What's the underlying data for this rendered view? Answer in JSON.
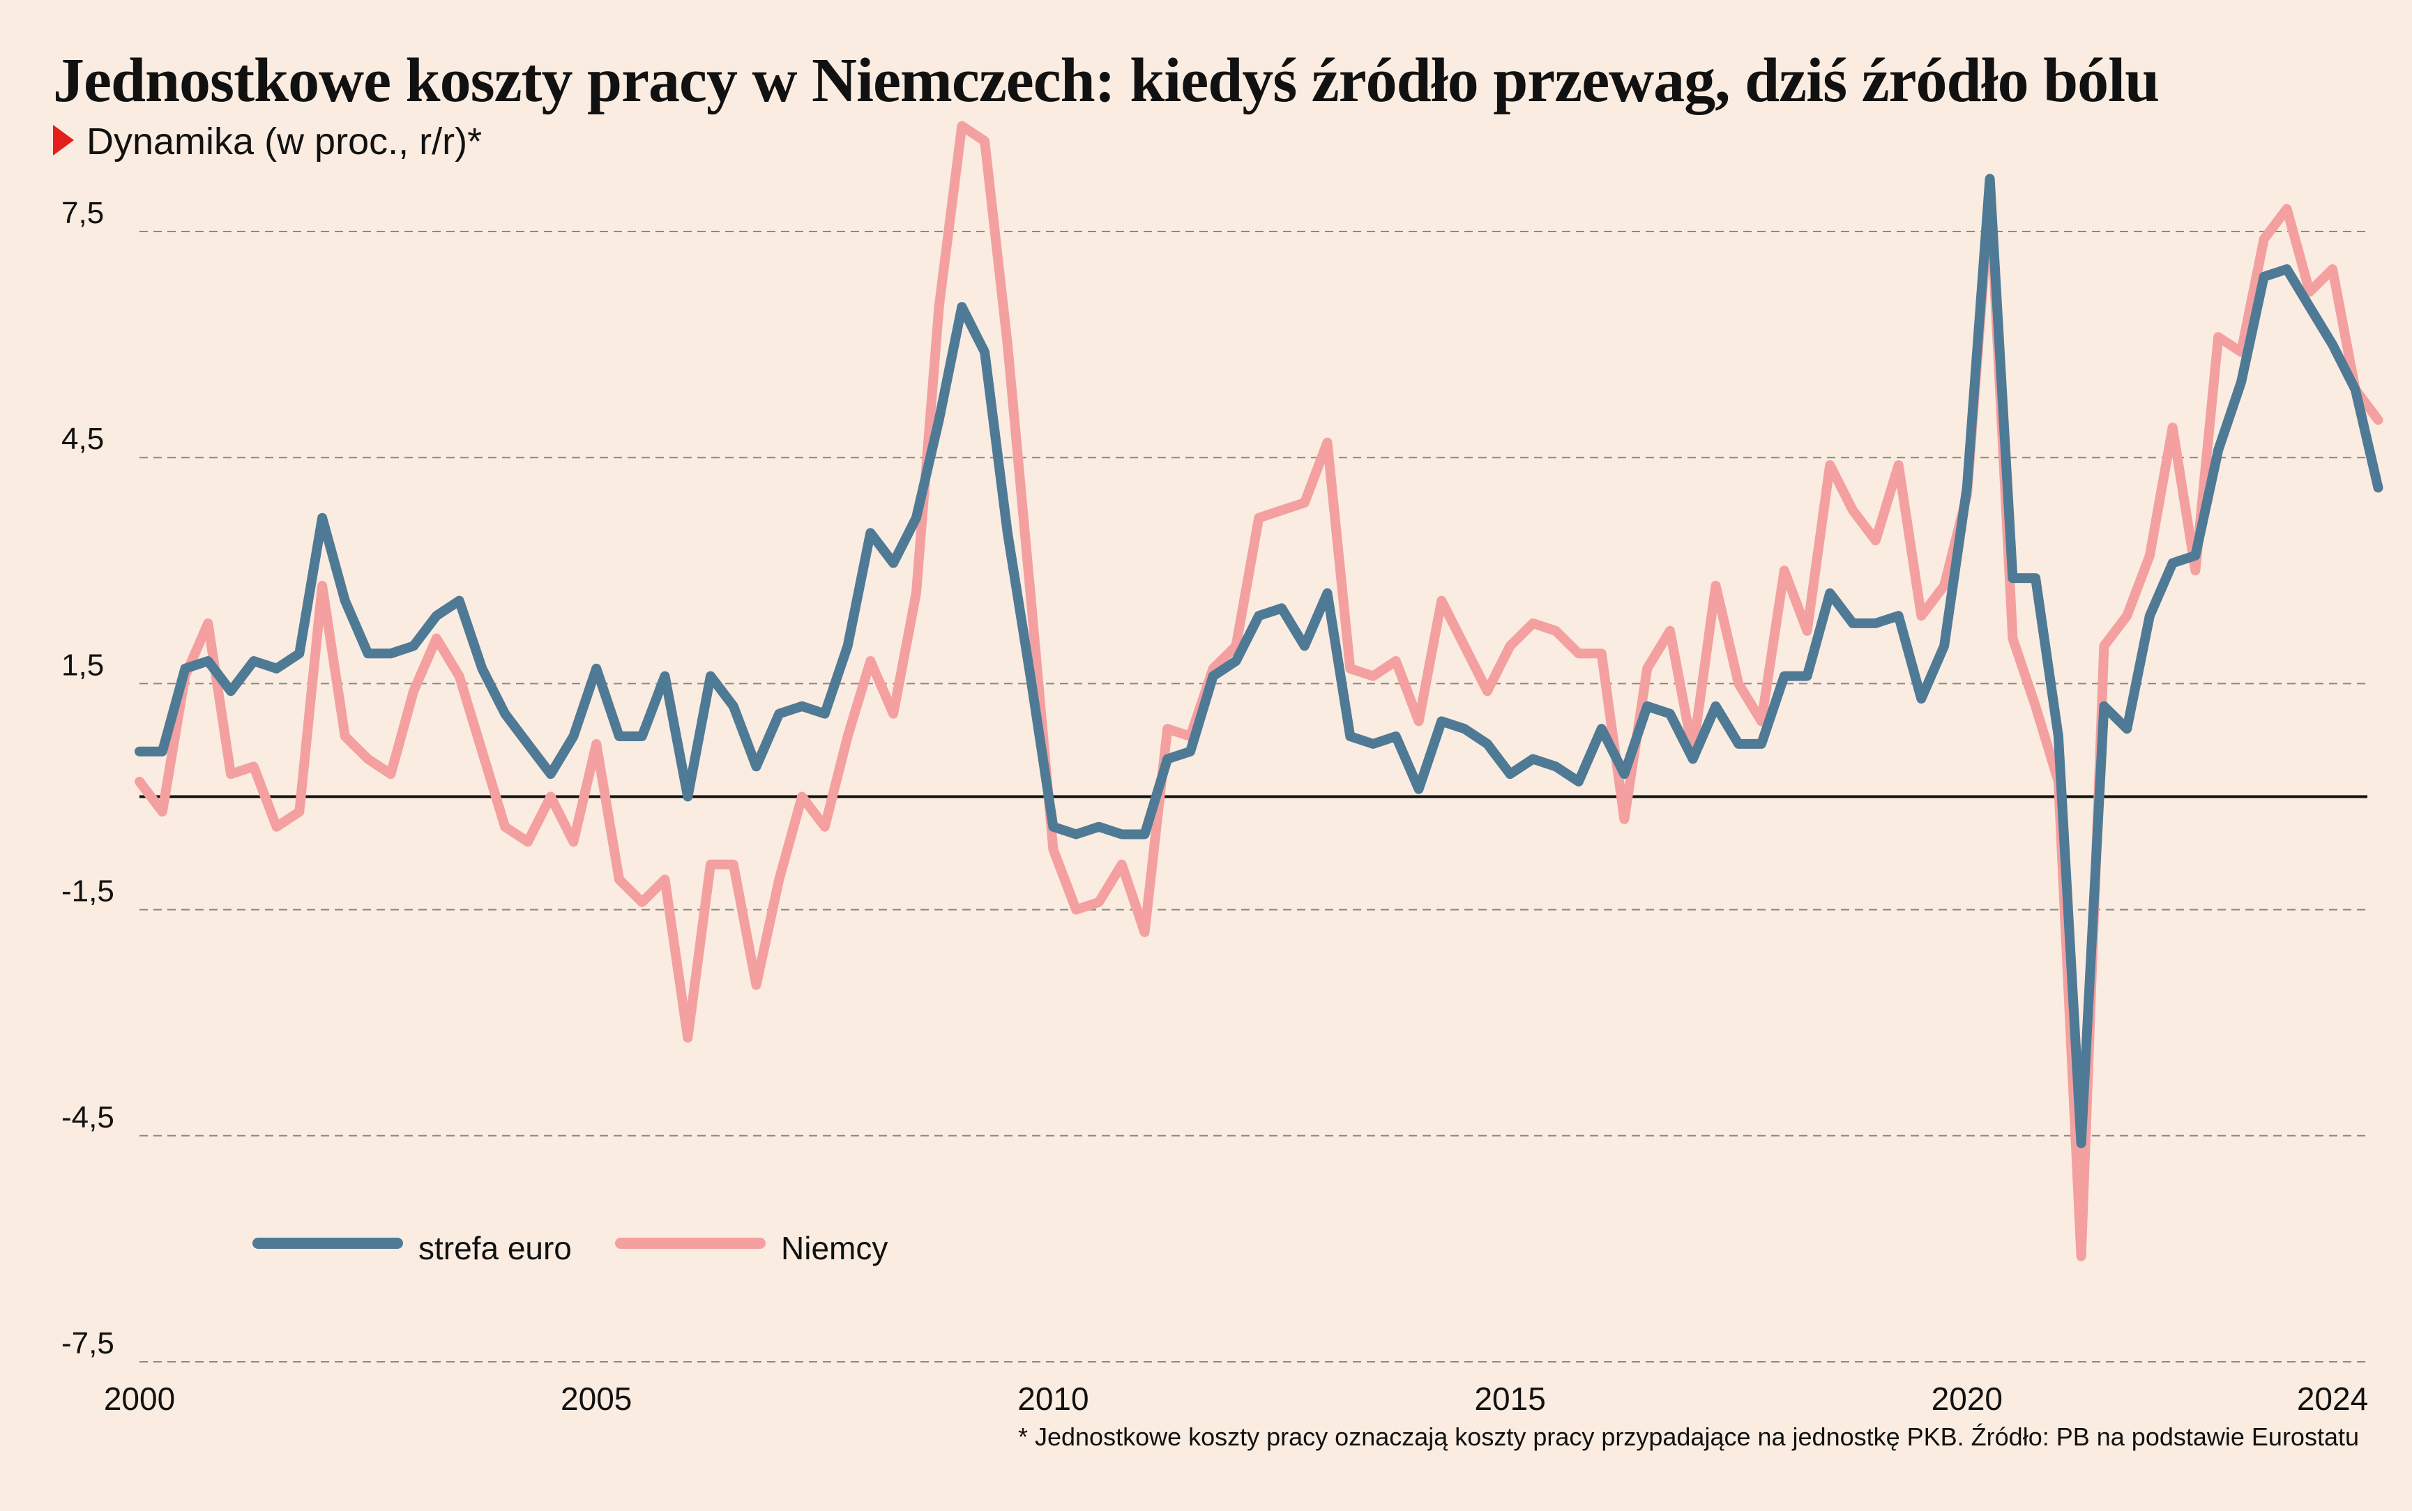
{
  "title": "Jednostkowe koszty pracy w Niemczech: kiedyś źródło przewag, dziś źródło bólu",
  "subtitle": "Dynamika (w proc., r/r)*",
  "footnote": "* Jednostkowe koszty pracy oznaczają koszty pracy przypadające na jednostkę PKB. Źródło: PB na podstawie Eurostatu",
  "colors": {
    "background": "#faece0",
    "euro_area": "#4f7a96",
    "germany": "#f4a0a0",
    "marker": "#e41d1d",
    "grid": "#888888",
    "zero_line": "#111111"
  },
  "chart_data": {
    "type": "line",
    "title": "Jednostkowe koszty pracy w Niemczech: kiedyś źródło przewag, dziś źródło bólu",
    "subtitle": "Dynamika (w proc., r/r)*",
    "xlabel": "",
    "ylabel": "",
    "x_start": 2000,
    "x_step": 0.25,
    "xlim": [
      2000,
      2024.75
    ],
    "ylim": [
      -7.5,
      8.5
    ],
    "y_ticks": [
      7.5,
      4.5,
      1.5,
      -1.5,
      -4.5,
      -7.5
    ],
    "y_tick_labels": [
      "7,5",
      "4,5",
      "1,5",
      "-1,5",
      "-4,5",
      "-7,5"
    ],
    "x_ticks": [
      2000,
      2005,
      2010,
      2015,
      2020,
      2024
    ],
    "x_tick_labels": [
      "2000",
      "2005",
      "2010",
      "2015",
      "2020",
      "2024"
    ],
    "grid": "horizontal dashed",
    "legend_position": "bottom-left",
    "series": [
      {
        "name": "strefa euro",
        "color": "#4f7a96",
        "values": [
          0.6,
          0.6,
          1.7,
          1.8,
          1.4,
          1.8,
          1.7,
          1.9,
          3.7,
          2.6,
          1.9,
          1.9,
          2.0,
          2.4,
          2.6,
          1.7,
          1.1,
          0.7,
          0.3,
          0.8,
          1.7,
          0.8,
          0.8,
          1.6,
          0.0,
          1.6,
          1.2,
          0.4,
          1.1,
          1.2,
          1.1,
          2.0,
          3.5,
          3.1,
          3.7,
          5.0,
          6.5,
          5.9,
          3.5,
          1.6,
          -0.4,
          -0.5,
          -0.4,
          -0.5,
          -0.5,
          0.5,
          0.6,
          1.6,
          1.8,
          2.4,
          2.5,
          2.0,
          2.7,
          0.8,
          0.7,
          0.8,
          0.1,
          1.0,
          0.9,
          0.7,
          0.3,
          0.5,
          0.4,
          0.2,
          0.9,
          0.3,
          1.2,
          1.1,
          0.5,
          1.2,
          0.7,
          0.7,
          1.6,
          1.6,
          2.7,
          2.3,
          2.3,
          2.4,
          1.3,
          2.0,
          4.1,
          8.2,
          2.9,
          2.9,
          0.8,
          -4.6,
          1.2,
          0.9,
          2.4,
          3.1,
          3.2,
          4.6,
          5.5,
          6.9,
          7.0,
          6.5,
          6.0,
          5.4,
          4.1
        ]
      },
      {
        "name": "Niemcy",
        "color": "#f4a0a0",
        "values": [
          0.2,
          -0.2,
          1.6,
          2.3,
          0.3,
          0.4,
          -0.4,
          -0.2,
          2.8,
          0.8,
          0.5,
          0.3,
          1.4,
          2.1,
          1.6,
          0.6,
          -0.4,
          -0.6,
          0.0,
          -0.6,
          0.7,
          -1.1,
          -1.4,
          -1.1,
          -3.2,
          -0.9,
          -0.9,
          -2.5,
          -1.1,
          0.0,
          -0.4,
          0.8,
          1.8,
          1.1,
          2.7,
          6.5,
          8.9,
          8.7,
          6.0,
          2.7,
          -0.7,
          -1.5,
          -1.4,
          -0.9,
          -1.8,
          0.9,
          0.8,
          1.7,
          2.0,
          3.7,
          3.8,
          3.9,
          4.7,
          1.7,
          1.6,
          1.8,
          1.0,
          2.6,
          2.0,
          1.4,
          2.0,
          2.3,
          2.2,
          1.9,
          1.9,
          -0.3,
          1.7,
          2.2,
          0.6,
          2.8,
          1.5,
          1.0,
          3.0,
          2.2,
          4.4,
          3.8,
          3.4,
          4.4,
          2.4,
          2.8,
          4.0,
          8.0,
          2.1,
          1.2,
          0.2,
          -6.1,
          2.0,
          2.4,
          3.2,
          4.9,
          3.0,
          6.1,
          5.9,
          7.4,
          7.8,
          6.7,
          7.0,
          5.4,
          5.0
        ]
      }
    ]
  }
}
